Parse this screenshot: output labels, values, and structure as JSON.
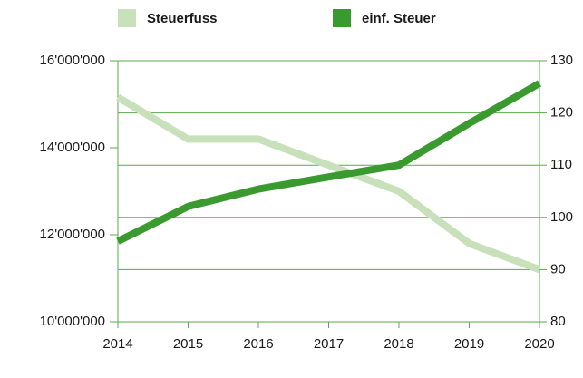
{
  "chart_data": {
    "type": "line",
    "categories": [
      "2014",
      "2015",
      "2016",
      "2017",
      "2018",
      "2019",
      "2020"
    ],
    "series": [
      {
        "name": "Steuerfuss",
        "color": "#c9e1bb",
        "axis": "y2",
        "values": [
          123,
          115,
          115,
          110,
          105,
          95,
          90
        ]
      },
      {
        "name": "einf. Steuer",
        "color": "#3b9a2f",
        "values": [
          11850000,
          12650000,
          13050000,
          13330000,
          13600000,
          14560000,
          15480000
        ]
      }
    ],
    "ylim": [
      10000000,
      16000000
    ],
    "yticks": [
      {
        "value": 10000000,
        "label": "10'000'000"
      },
      {
        "value": 12000000,
        "label": "12'000'000"
      },
      {
        "value": 14000000,
        "label": "14'000'000"
      },
      {
        "value": 16000000,
        "label": "16'000'000"
      }
    ],
    "y2lim": [
      80,
      130
    ],
    "y2ticks": [
      80,
      90,
      100,
      110,
      120,
      130
    ],
    "grid": true,
    "legend": "top"
  }
}
